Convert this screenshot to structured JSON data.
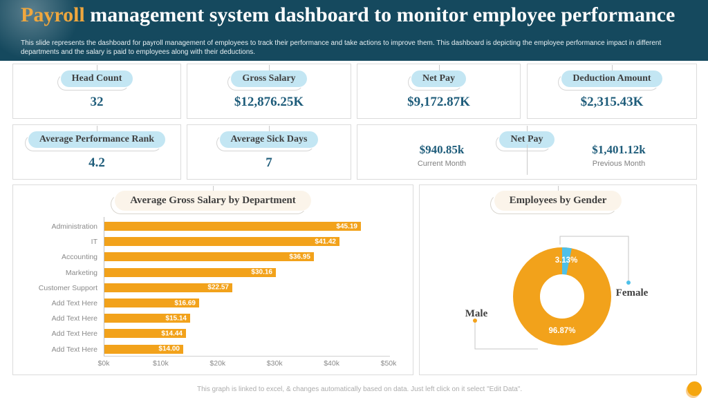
{
  "header": {
    "title_highlight": "Payroll",
    "title_rest": " management system dashboard to monitor employee performance",
    "subtitle": "This slide represents the dashboard for payroll management of employees to track their performance and take actions to improve them. This dashboard is depicting the employee performance impact in different departments and the salary is paid to employees along with their deductions."
  },
  "kpi_row1": [
    {
      "label": "Head Count",
      "value": "32"
    },
    {
      "label": "Gross Salary",
      "value": "$12,876.25K"
    },
    {
      "label": "Net Pay",
      "value": "$9,172.87K"
    },
    {
      "label": "Deduction Amount",
      "value": "$2,315.43K"
    }
  ],
  "kpi_row2": [
    {
      "label": "Average Performance Rank",
      "value": "4.2"
    },
    {
      "label": "Average Sick Days",
      "value": "7"
    }
  ],
  "net_pay_compare": {
    "label": "Net Pay",
    "current": {
      "value": "$940.85k",
      "caption": "Current Month"
    },
    "previous": {
      "value": "$1,401.12k",
      "caption": "Previous Month"
    }
  },
  "chart_data": [
    {
      "type": "bar",
      "title": "Average Gross Salary by Department",
      "categories": [
        "Administration",
        "IT",
        "Accounting",
        "Marketing",
        "Customer Support",
        "Add Text Here",
        "Add Text Here",
        "Add Text Here",
        "Add Text Here"
      ],
      "values": [
        45.19,
        41.42,
        36.95,
        30.16,
        22.57,
        16.69,
        15.14,
        14.44,
        14.0
      ],
      "value_labels": [
        "$45.19",
        "$41.42",
        "$36.95",
        "$30.16",
        "$22.57",
        "$16.69",
        "$15.14",
        "$14.44",
        "$14.00"
      ],
      "x_ticks": [
        "$0k",
        "$10k",
        "$20k",
        "$30k",
        "$40k",
        "$50k"
      ],
      "xlim": [
        0,
        50
      ],
      "xlabel": "",
      "ylabel": "",
      "bar_color": "#F2A21B",
      "grid": false
    },
    {
      "type": "pie",
      "title": "Employees by Gender",
      "donut": true,
      "slices": [
        {
          "name": "Male",
          "pct": 96.87,
          "label": "96.87%",
          "color": "#F2A21B"
        },
        {
          "name": "Female",
          "pct": 3.13,
          "label": "3.13%",
          "color": "#4EC0E9"
        }
      ],
      "legend_position": "callout-labels"
    }
  ],
  "footer": {
    "note": "This graph is linked to excel, & changes automatically based on data. Just left click on it select \"Edit Data\"."
  },
  "colors": {
    "header_bg": "#15495E",
    "accent_orange": "#F2A21B",
    "title_orange": "#EFA73E",
    "kpi_value": "#1E5C7A",
    "pill_blue": "#C3E6F3",
    "pill_cream": "#FBF4EA",
    "female_blue": "#4EC0E9"
  }
}
